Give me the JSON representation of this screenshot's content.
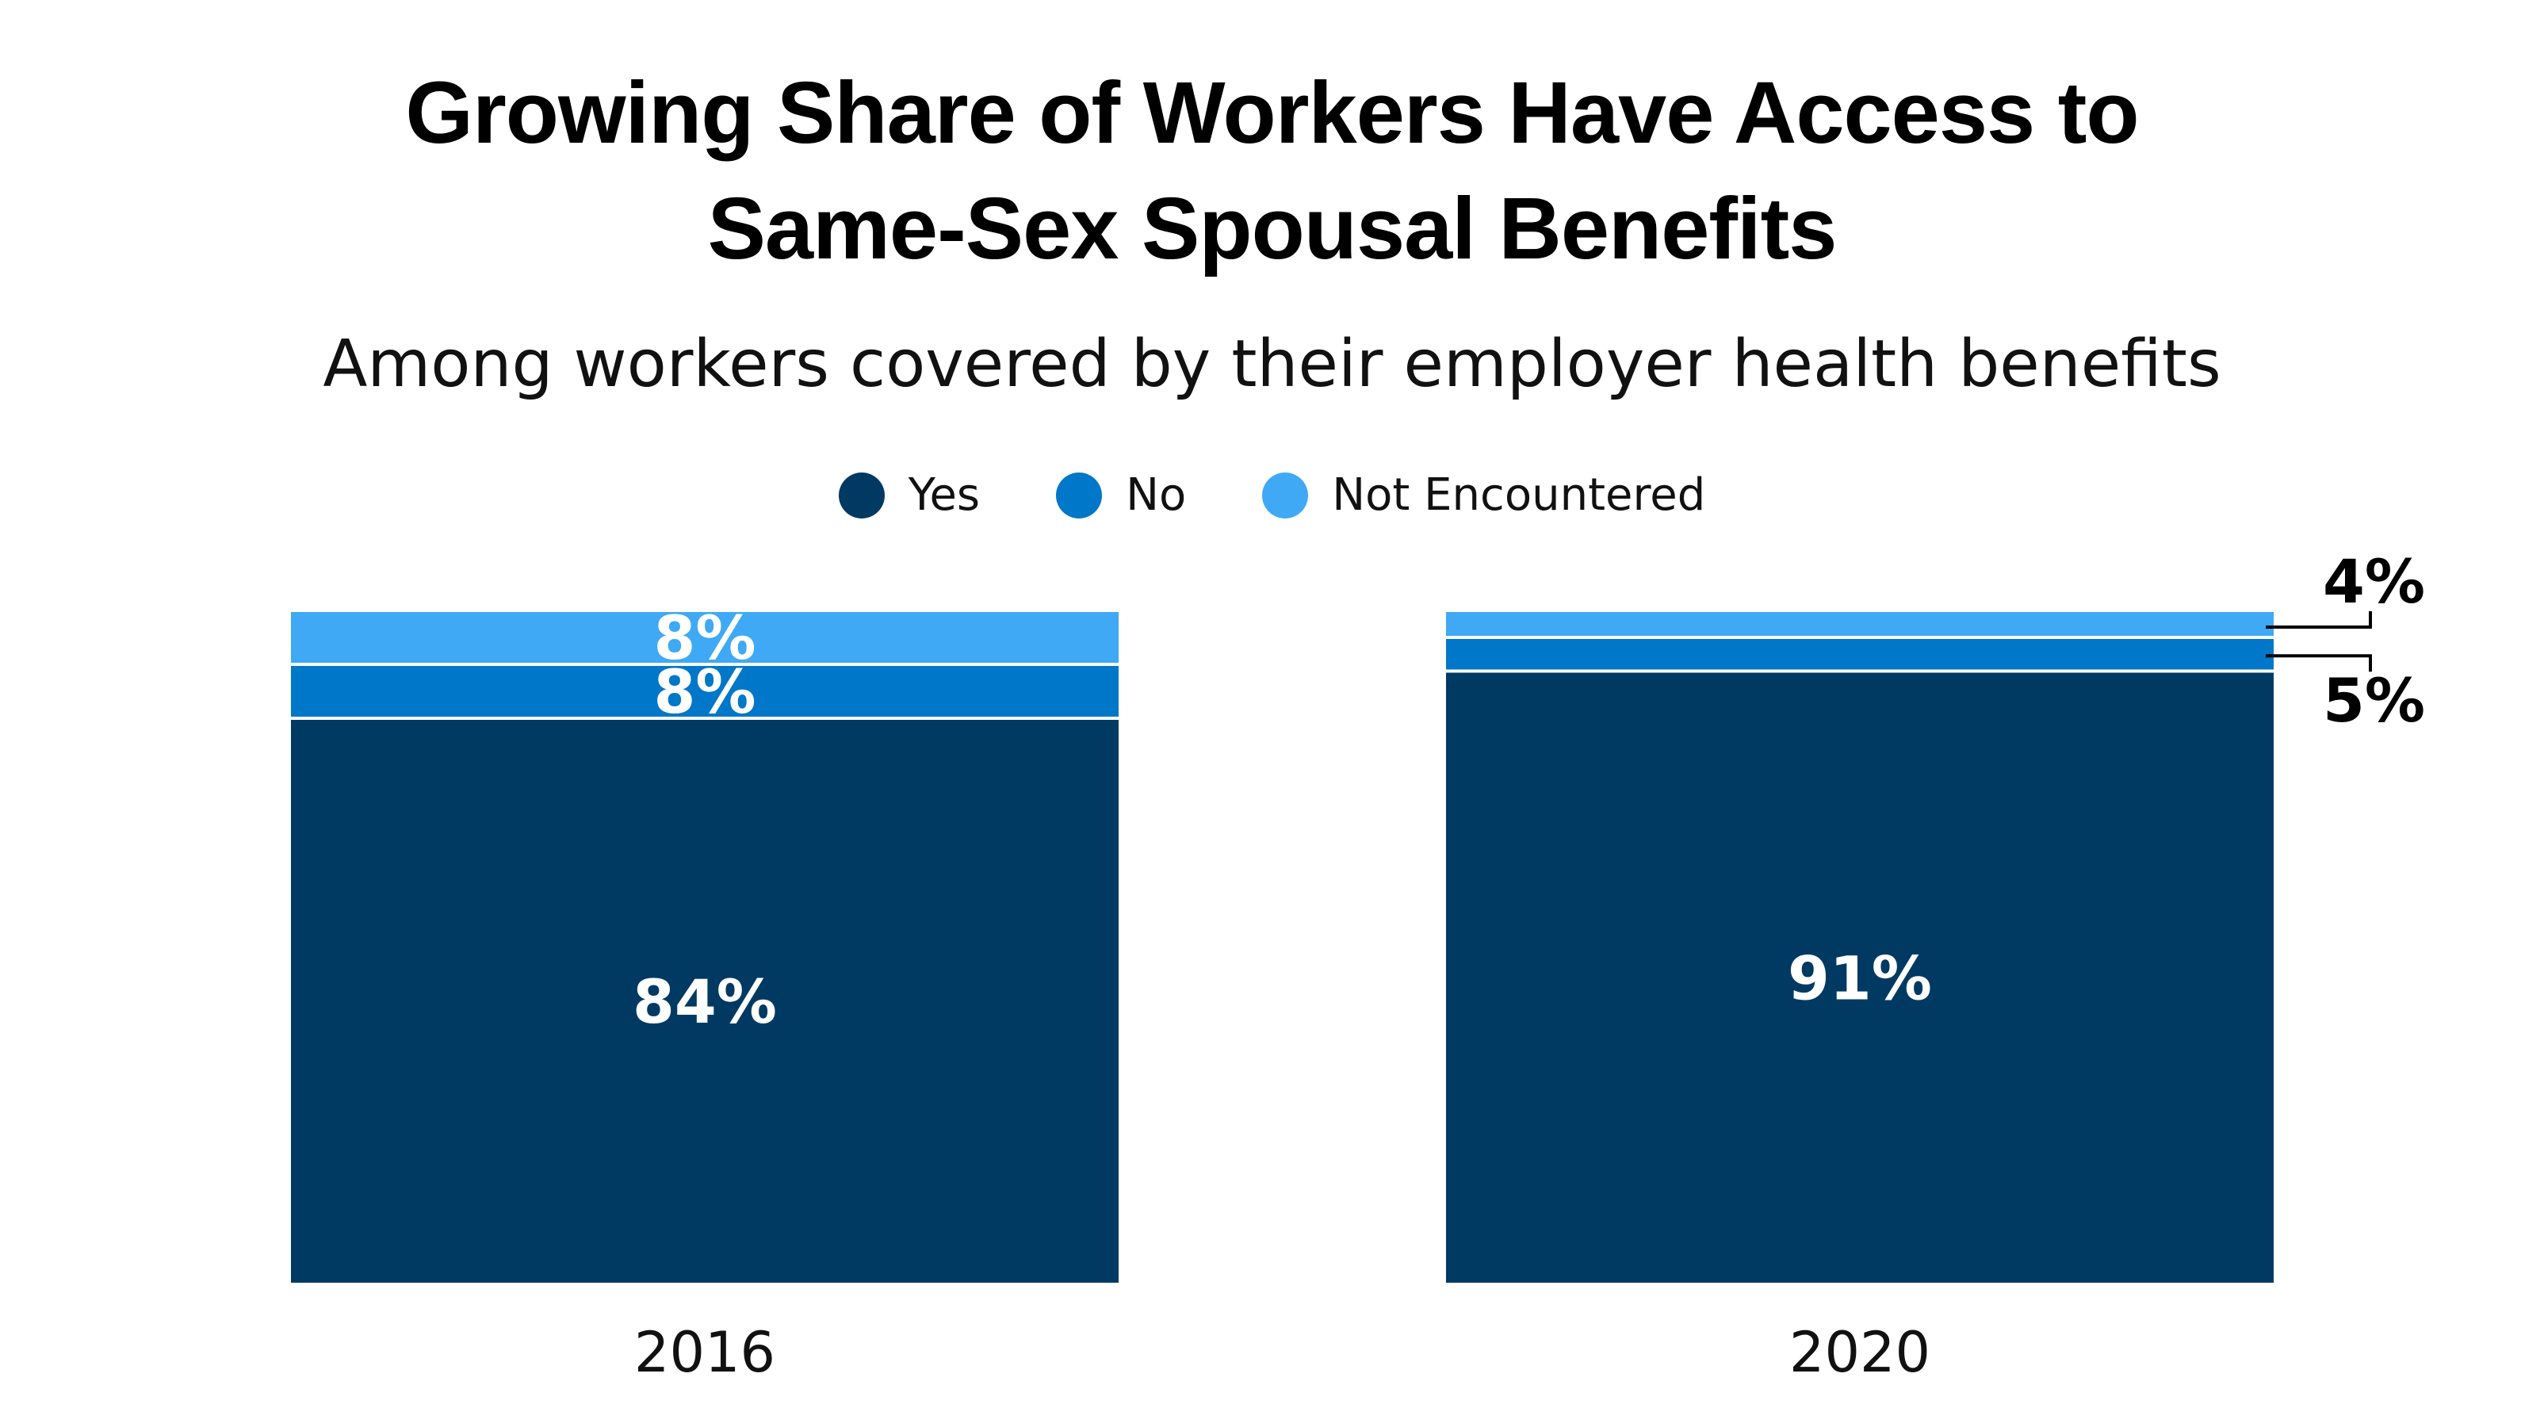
{
  "chart_data": {
    "type": "bar",
    "stacked": true,
    "title_lines": [
      "Growing Share of Workers Have Access to",
      "Same-Sex Spousal Benefits"
    ],
    "subtitle": "Among workers covered by their employer health benefits",
    "categories": [
      "2016",
      "2020"
    ],
    "series": [
      {
        "name": "Yes",
        "color": "#003a63",
        "values": [
          84,
          91
        ],
        "labels": [
          "84%",
          "91%"
        ]
      },
      {
        "name": "No",
        "color": "#0077c8",
        "values": [
          8,
          5
        ],
        "labels": [
          "8%",
          "5%"
        ]
      },
      {
        "name": "Not Encountered",
        "color": "#3fa9f5",
        "values": [
          8,
          4
        ],
        "labels": [
          "8%",
          "4%"
        ]
      }
    ],
    "ylim": [
      0,
      100
    ],
    "legend_position": "top-center",
    "grid": false
  }
}
